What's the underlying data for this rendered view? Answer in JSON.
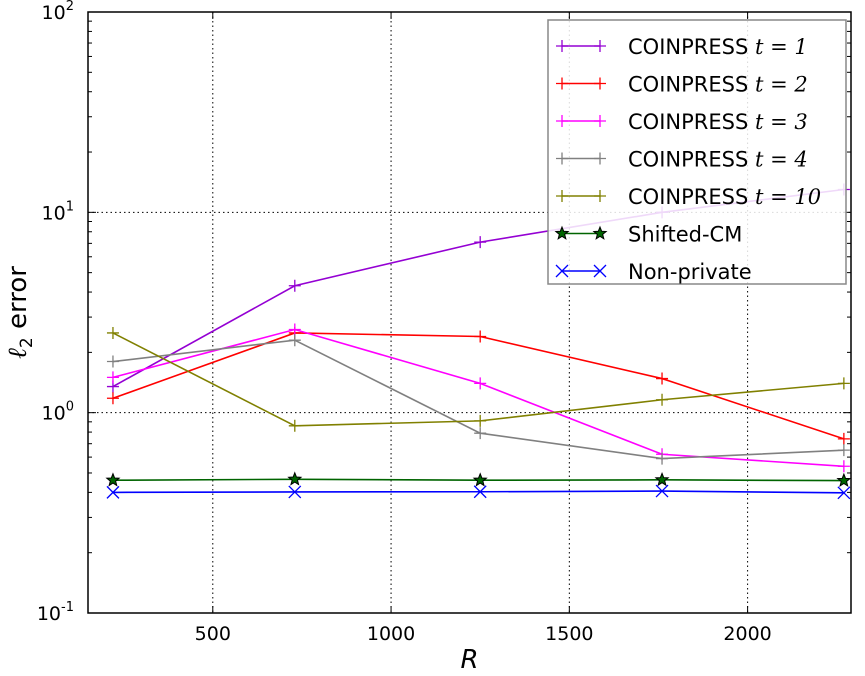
{
  "chart_data": {
    "type": "line",
    "xlabel": "R",
    "ylabel_main": "2",
    "ylabel_symbol": "ℓ",
    "ylabel_suffix": " error",
    "yscale": "log",
    "xlim": [
      150,
      2290
    ],
    "ylim": [
      0.1,
      100
    ],
    "x_ticks": [
      500,
      1000,
      1500,
      2000
    ],
    "y_ticks": [
      {
        "value": 0.1,
        "base": "10",
        "exp": "-1"
      },
      {
        "value": 1,
        "base": "10",
        "exp": "0"
      },
      {
        "value": 10,
        "base": "10",
        "exp": "1"
      },
      {
        "value": 100,
        "base": "10",
        "exp": "2"
      }
    ],
    "grid": true,
    "legend_position": "top-right",
    "x": [
      220,
      730,
      1250,
      1760,
      2270
    ],
    "series": [
      {
        "name": "COINPRESS",
        "param": "t = 1",
        "color": "#9400d3",
        "marker": "+",
        "values": [
          1.35,
          4.3,
          7.1,
          10.0,
          13.0
        ]
      },
      {
        "name": "COINPRESS",
        "param": "t = 2",
        "color": "#ff0000",
        "marker": "+",
        "values": [
          1.18,
          2.5,
          2.4,
          1.48,
          0.74
        ]
      },
      {
        "name": "COINPRESS",
        "param": "t = 3",
        "color": "#ff00ff",
        "marker": "+",
        "values": [
          1.5,
          2.6,
          1.4,
          0.62,
          0.54
        ]
      },
      {
        "name": "COINPRESS",
        "param": "t = 4",
        "color": "#808080",
        "marker": "+",
        "values": [
          1.8,
          2.3,
          0.79,
          0.59,
          0.65
        ]
      },
      {
        "name": "COINPRESS",
        "param": "t = 10",
        "color": "#808000",
        "marker": "+",
        "values": [
          2.5,
          0.86,
          0.91,
          1.16,
          1.4
        ]
      },
      {
        "name": "Shifted-CM",
        "param": "",
        "color": "#006400",
        "marker": "star",
        "values": [
          0.46,
          0.465,
          0.46,
          0.462,
          0.458
        ]
      },
      {
        "name": "Non-private",
        "param": "",
        "color": "#0000ff",
        "marker": "x",
        "values": [
          0.4,
          0.402,
          0.403,
          0.406,
          0.398
        ]
      }
    ]
  }
}
